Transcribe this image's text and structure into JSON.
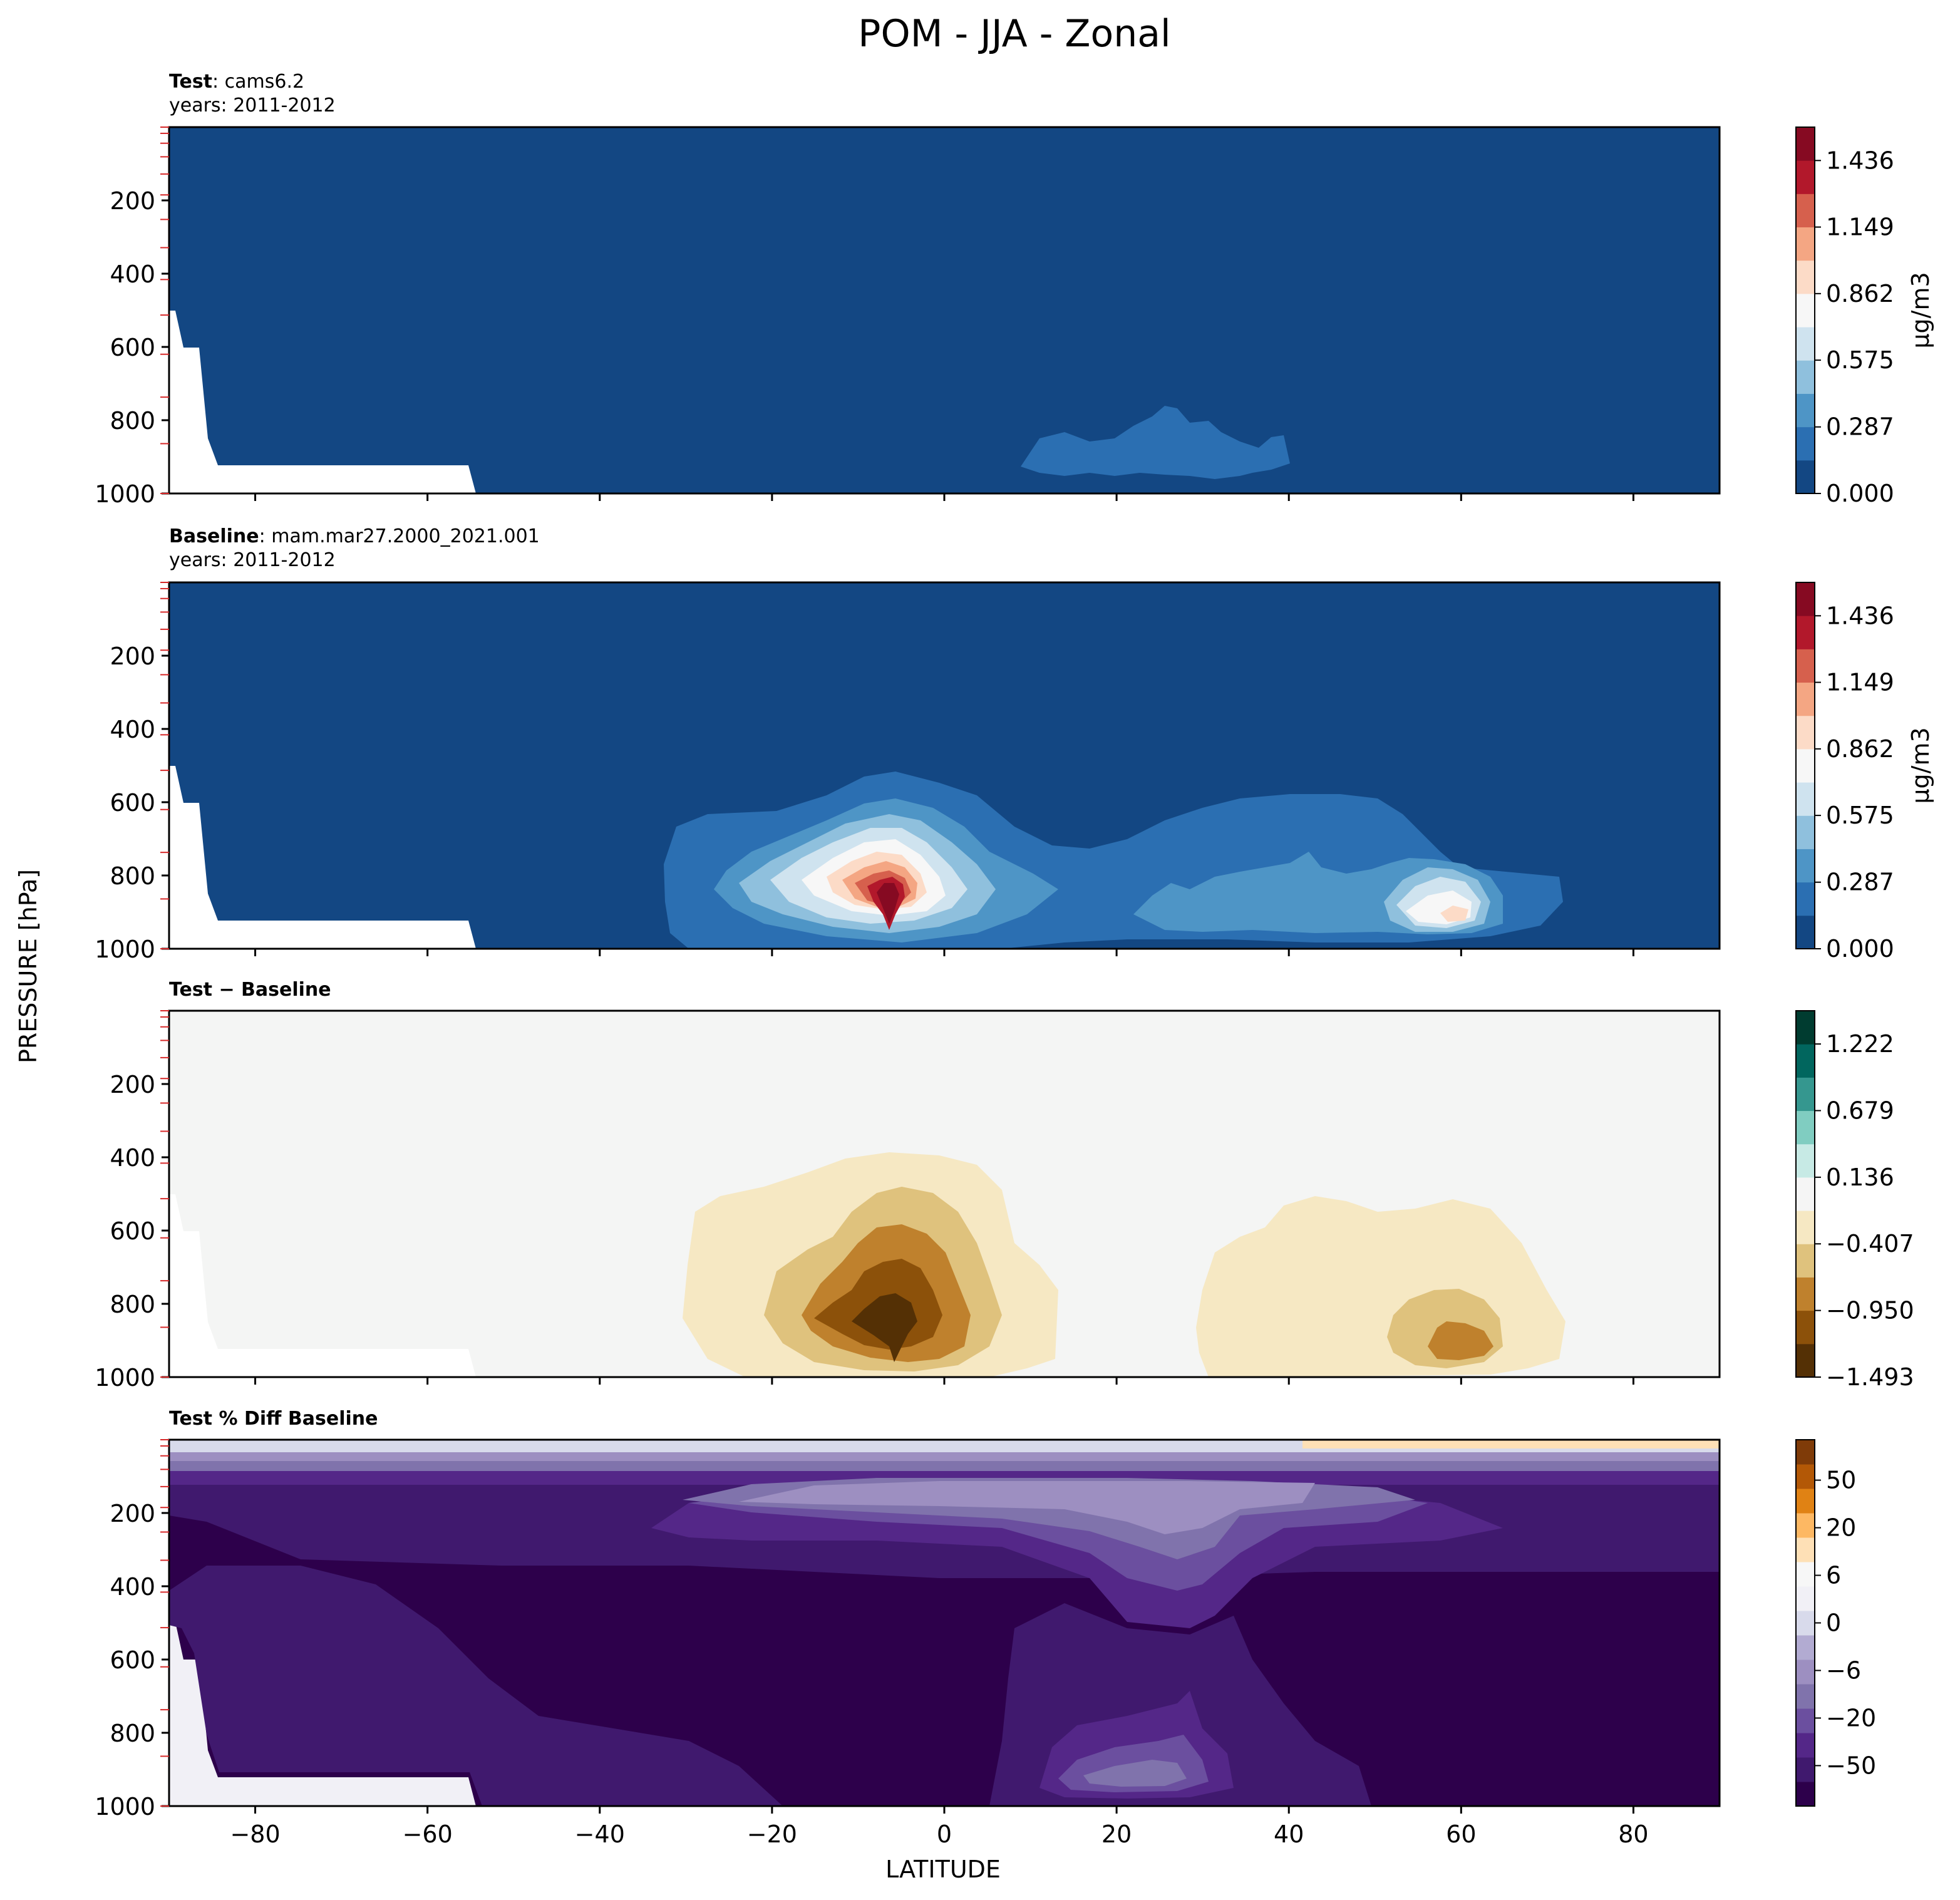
{
  "chart_data": {
    "type": "contour",
    "suptitle": "POM - JJA - Zonal",
    "xlabel": "LATITUDE",
    "ylabel": "PRESSURE [hPa]",
    "xlim": [
      -90,
      90
    ],
    "ylim": [
      1000,
      0
    ],
    "xticks": [
      -80,
      -60,
      -40,
      -20,
      0,
      20,
      40,
      60,
      80
    ],
    "xtick_labels": [
      "−80",
      "−60",
      "−40",
      "−20",
      "0",
      "20",
      "40",
      "60",
      "80"
    ],
    "yticks": [
      200,
      400,
      600,
      800,
      1000
    ],
    "ytick_labels": [
      "200",
      "400",
      "600",
      "800",
      "1000"
    ],
    "panels": [
      {
        "id": "test",
        "title_bold": "Test",
        "title_text": ": cams6.2",
        "subtitle": "years: 2011-2012",
        "colorbar": {
          "label": "μg/m3",
          "colors": [
            "#134783",
            "#2b6fb2",
            "#4e95c6",
            "#8fc0dd",
            "#cfe3ef",
            "#f7f7f7",
            "#fcdbc7",
            "#f4a683",
            "#d6604d",
            "#b2182b",
            "#860a22"
          ],
          "ticks": [
            0.0,
            0.287,
            0.575,
            0.862,
            1.149,
            1.436
          ],
          "tick_labels": [
            "0.000",
            "0.287",
            "0.575",
            "0.862",
            "1.149",
            "1.436"
          ],
          "range": [
            0.0,
            1.58
          ]
        },
        "background_color": "#134783",
        "features": [
          {
            "level": 0.25,
            "color": "#2b6fb2",
            "center": [
              25,
              900
            ],
            "extent": [
              8,
              42
            ],
            "peak_pressure": 775
          }
        ]
      },
      {
        "id": "baseline",
        "title_bold": "Baseline",
        "title_text": ": mam.mar27.2000_2021.001",
        "subtitle": "years: 2011-2012",
        "colorbar": {
          "label": "μg/m3",
          "colors": [
            "#134783",
            "#2b6fb2",
            "#4e95c6",
            "#8fc0dd",
            "#cfe3ef",
            "#f7f7f7",
            "#fcdbc7",
            "#f4a683",
            "#d6604d",
            "#b2182b",
            "#860a22"
          ],
          "ticks": [
            0.0,
            0.287,
            0.575,
            0.862,
            1.149,
            1.436
          ],
          "tick_labels": [
            "0.000",
            "0.287",
            "0.575",
            "0.862",
            "1.149",
            "1.436"
          ],
          "range": [
            0.0,
            1.58
          ]
        },
        "background_color": "#134783",
        "features": [
          {
            "level": "max",
            "value": 1.5,
            "center": [
              -5,
              850
            ],
            "extent": [
              -32,
              15
            ],
            "top_pressure": 540
          },
          {
            "level": 0.9,
            "value": 0.9,
            "center": [
              60,
              910
            ],
            "extent": [
              30,
              72
            ],
            "top_pressure": 590
          }
        ]
      },
      {
        "id": "diff",
        "title": "Test − Baseline",
        "colorbar": {
          "colors": [
            "#543005",
            "#8c510a",
            "#bf812d",
            "#dfc27d",
            "#f6e8c3",
            "#f5f5f5",
            "#c7eae5",
            "#80cdc1",
            "#35978f",
            "#01665e",
            "#003c30"
          ],
          "ticks": [
            -1.493,
            -0.95,
            -0.407,
            0.136,
            0.679,
            1.222
          ],
          "tick_labels": [
            "−1.493",
            "−0.950",
            "−0.407",
            "0.136",
            "0.679",
            "1.222"
          ],
          "range": [
            -1.493,
            1.493
          ]
        },
        "background_color": "#f4f5f4",
        "features": [
          {
            "level": "min",
            "value": -1.4,
            "center": [
              -5,
              850
            ],
            "extent": [
              -30,
              13
            ],
            "top_pressure": 540
          },
          {
            "level": -0.6,
            "value": -0.6,
            "center": [
              58,
              910
            ],
            "extent": [
              30,
              72
            ],
            "top_pressure": 600
          }
        ]
      },
      {
        "id": "pctdiff",
        "title": "Test % Diff Baseline",
        "colorbar": {
          "colors": [
            "#2d004b",
            "#40196e",
            "#542788",
            "#6b4f9f",
            "#8073ac",
            "#9d8fc1",
            "#b2abd2",
            "#d8daeb",
            "#f1f0f6",
            "#f7f7f7",
            "#fee0b6",
            "#fdb863",
            "#e08214",
            "#b35806",
            "#7f3b08"
          ],
          "ticks": [
            -50,
            -20,
            -6,
            0,
            6,
            20,
            50
          ],
          "tick_labels": [
            "−50",
            "−20",
            "−6",
            "0",
            "6",
            "20",
            "50"
          ],
          "range": [
            -100,
            100
          ]
        },
        "background_color": "#2d004b"
      }
    ]
  }
}
